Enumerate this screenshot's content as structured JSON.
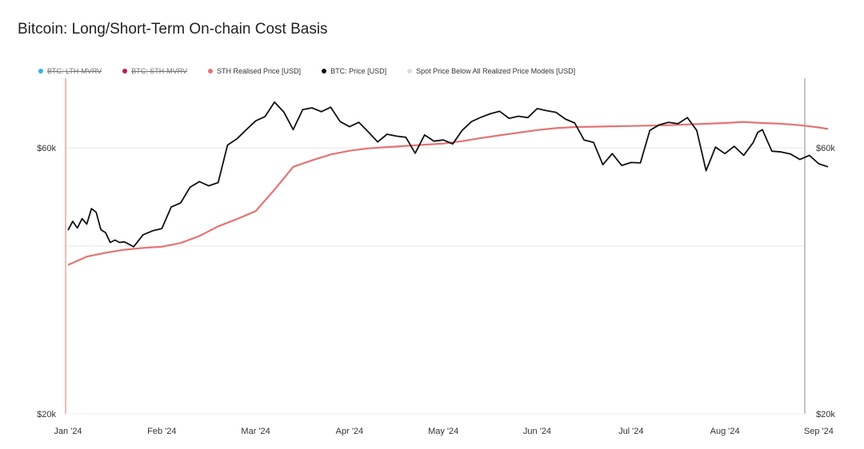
{
  "title": "Bitcoin: Long/Short-Term On-chain Cost Basis",
  "legend": [
    {
      "label": "BTC: LTH-MVRV",
      "color": "#3aaee0",
      "hidden": true
    },
    {
      "label": "BTC: STH-MVRV",
      "color": "#c2185b",
      "hidden": true
    },
    {
      "label": "STH Realised Price [USD]",
      "color": "#e57373",
      "hidden": false
    },
    {
      "label": "BTC: Price [USD]",
      "color": "#111111",
      "hidden": false
    },
    {
      "label": "Spot Price Below All Realized Price Models [USD]",
      "color": "#d8d8f0",
      "hidden": false
    }
  ],
  "chart_data": {
    "type": "line",
    "title": "Bitcoin: Long/Short-Term On-chain Cost Basis",
    "x_tick_labels": [
      "Jan '24",
      "Feb '24",
      "Mar '24",
      "Apr '24",
      "May '24",
      "Jun '24",
      "Jul '24",
      "Aug '24",
      "Sep '24"
    ],
    "x_domain_months": [
      0,
      8.2
    ],
    "y_scale": "log",
    "y_range": [
      20000,
      80000
    ],
    "y_tick_labels_left": [
      "$60k",
      "$20k"
    ],
    "y_tick_values_left": [
      60000,
      20000
    ],
    "y_tick_labels_right": [
      "$60k",
      "$20k"
    ],
    "y_tick_values_right": [
      60000,
      20000
    ],
    "gridlines_at": [
      60000,
      40000,
      20000
    ],
    "series": [
      {
        "name": "STH Realised Price [USD]",
        "color": "#e57373",
        "x": [
          0,
          0.2,
          0.4,
          0.6,
          0.8,
          1.0,
          1.2,
          1.4,
          1.6,
          1.8,
          2.0,
          2.2,
          2.4,
          2.6,
          2.8,
          3.0,
          3.2,
          3.4,
          3.6,
          3.8,
          4.0,
          4.2,
          4.4,
          4.6,
          4.8,
          5.0,
          5.2,
          5.4,
          5.6,
          5.8,
          6.0,
          6.2,
          6.4,
          6.6,
          6.8,
          7.0,
          7.2,
          7.4,
          7.6,
          7.8,
          8.0,
          8.1
        ],
        "y": [
          37000,
          38300,
          38900,
          39400,
          39700,
          39900,
          40500,
          41700,
          43400,
          44700,
          46200,
          50500,
          55500,
          57000,
          58400,
          59300,
          59900,
          60200,
          60500,
          60800,
          61100,
          61700,
          62500,
          63200,
          63900,
          64600,
          65100,
          65400,
          65500,
          65600,
          65700,
          65800,
          65900,
          66100,
          66300,
          66500,
          66800,
          66500,
          66300,
          65900,
          65300,
          64900
        ]
      },
      {
        "name": "BTC: Price [USD]",
        "color": "#111111",
        "x": [
          0,
          0.05,
          0.1,
          0.15,
          0.2,
          0.25,
          0.3,
          0.35,
          0.4,
          0.45,
          0.5,
          0.55,
          0.6,
          0.65,
          0.7,
          0.8,
          0.9,
          1.0,
          1.1,
          1.2,
          1.3,
          1.4,
          1.5,
          1.6,
          1.7,
          1.8,
          1.9,
          2.0,
          2.1,
          2.2,
          2.3,
          2.4,
          2.5,
          2.6,
          2.7,
          2.8,
          2.9,
          3.0,
          3.1,
          3.2,
          3.3,
          3.4,
          3.5,
          3.6,
          3.7,
          3.8,
          3.9,
          4.0,
          4.1,
          4.2,
          4.3,
          4.4,
          4.5,
          4.6,
          4.7,
          4.8,
          4.9,
          5.0,
          5.1,
          5.2,
          5.3,
          5.4,
          5.5,
          5.6,
          5.7,
          5.8,
          5.9,
          6.0,
          6.1,
          6.2,
          6.3,
          6.4,
          6.5,
          6.6,
          6.7,
          6.8,
          6.9,
          7.0,
          7.1,
          7.2,
          7.3,
          7.35,
          7.4,
          7.5,
          7.6,
          7.7,
          7.8,
          7.9,
          8.0,
          8.1
        ],
        "y": [
          42700,
          44300,
          43100,
          44800,
          43800,
          46700,
          46000,
          42800,
          42300,
          40600,
          41000,
          40600,
          40700,
          40300,
          39900,
          41900,
          42600,
          43000,
          47000,
          47800,
          51000,
          52200,
          51300,
          52000,
          60700,
          62300,
          64700,
          67100,
          68300,
          72500,
          69600,
          64700,
          70300,
          70800,
          69700,
          71000,
          66900,
          65500,
          66700,
          64100,
          61500,
          63500,
          63000,
          62700,
          58700,
          63300,
          61700,
          62000,
          61000,
          64500,
          66900,
          68100,
          69100,
          69800,
          67800,
          68400,
          68000,
          70600,
          70000,
          69500,
          67600,
          66500,
          62000,
          61400,
          56000,
          58600,
          55800,
          56500,
          56400,
          64500,
          66000,
          66700,
          66300,
          68000,
          64500,
          54600,
          60200,
          58600,
          60400,
          58200,
          61300,
          64000,
          64700,
          59200,
          59000,
          58500,
          57200,
          58200,
          56200,
          55500
        ]
      }
    ]
  }
}
